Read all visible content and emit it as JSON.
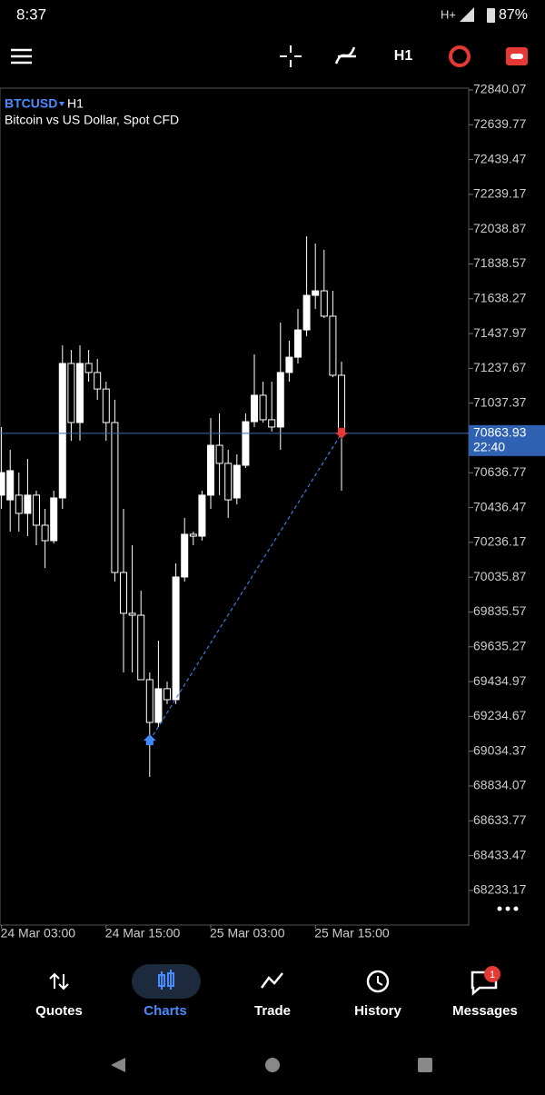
{
  "status_bar": {
    "time": "8:37",
    "network": "H+",
    "battery": "87%"
  },
  "toolbar": {
    "timeframe": "H1"
  },
  "chart_header": {
    "symbol": "BTCUSD",
    "timeframe": "H1",
    "description": "Bitcoin vs US Dollar, Spot CFD"
  },
  "chart_data": {
    "type": "candlestick",
    "categories": [
      "24 Mar 03:00",
      null,
      null,
      null,
      null,
      null,
      null,
      null,
      null,
      null,
      null,
      null,
      "24 Mar 15:00",
      null,
      null,
      null,
      null,
      null,
      null,
      null,
      null,
      null,
      null,
      null,
      "25 Mar 03:00",
      null,
      null,
      null,
      null,
      null,
      null,
      null,
      null,
      null,
      null,
      null,
      "25 Mar 15:00",
      null,
      null,
      null
    ],
    "open": [
      70508,
      70481,
      70508,
      70403,
      70508,
      70335,
      70246,
      70492,
      71266,
      70926,
      71266,
      71214,
      71119,
      70926,
      70063,
      69828,
      69817,
      69446,
      69200,
      69394,
      69331,
      70037,
      70283,
      70272,
      70508,
      70795,
      70691,
      70492,
      70680,
      70931,
      71083,
      70942,
      70900,
      71214,
      71302,
      71459,
      71658,
      71684,
      71538,
      71198
    ],
    "high": [
      70900,
      70769,
      70638,
      70717,
      70534,
      70429,
      70534,
      71370,
      71344,
      71370,
      71344,
      71292,
      71161,
      71057,
      70429,
      70220,
      69958,
      69488,
      69671,
      69435,
      70115,
      70377,
      70298,
      70534,
      70952,
      70978,
      70769,
      70743,
      70978,
      71318,
      71161,
      71161,
      71501,
      71397,
      71580,
      71998,
      71956,
      71920,
      71684,
      71276
    ],
    "low": [
      70429,
      70298,
      70298,
      70272,
      70220,
      70089,
      70230,
      70429,
      70821,
      70821,
      71161,
      71057,
      70821,
      70011,
      69488,
      69488,
      69461,
      68886,
      69174,
      69305,
      69305,
      70011,
      70220,
      70246,
      70429,
      70508,
      70377,
      70455,
      70664,
      70900,
      70926,
      70874,
      70769,
      71161,
      71266,
      71423,
      71580,
      71527,
      71187,
      70534
    ],
    "close": [
      70638,
      70649,
      70403,
      70508,
      70335,
      70246,
      70492,
      71266,
      70926,
      71266,
      71214,
      71119,
      70926,
      70063,
      69828,
      69817,
      69446,
      69200,
      69394,
      69331,
      70037,
      70283,
      70272,
      70508,
      70795,
      70691,
      70481,
      70680,
      70931,
      71083,
      70942,
      70900,
      71214,
      71302,
      71459,
      71658,
      71684,
      71538,
      71198,
      70863.93
    ],
    "ylim": [
      68033.7,
      72850.5
    ],
    "yticks": [
      72840.07,
      72639.77,
      72439.47,
      72239.17,
      72038.87,
      71838.57,
      71638.27,
      71437.97,
      71237.67,
      71037.37,
      70636.77,
      70436.47,
      70236.17,
      70035.87,
      69835.57,
      69635.27,
      69434.97,
      69234.67,
      69034.37,
      68834.07,
      68633.77,
      68433.47,
      68233.17
    ],
    "current_price": 70863.93,
    "countdown": "22:40",
    "trade": {
      "open_index": 17,
      "open_price": 69095,
      "close_index": 39,
      "close_price": 70863.93
    },
    "bull_color": "#ffffff",
    "bear_color": "#000000",
    "wick_color": "#ffffff"
  },
  "nav": {
    "items": [
      "Quotes",
      "Charts",
      "Trade",
      "History",
      "Messages"
    ],
    "active": 1,
    "badge": "1"
  }
}
